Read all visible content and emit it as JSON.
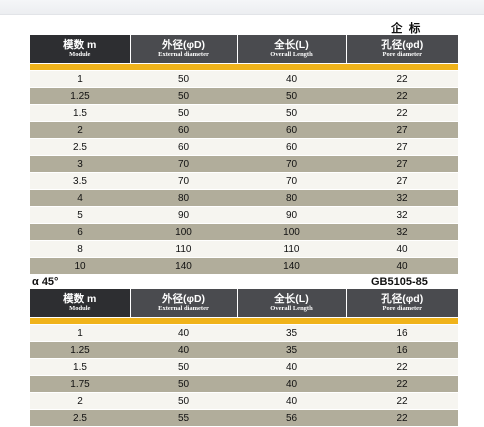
{
  "table1_label": "企  标",
  "section2_left_label": "α 45°",
  "section2_right_label": "GB5105-85",
  "headers": [
    {
      "cn": "模数 m",
      "en": "Module"
    },
    {
      "cn": "外径(φD)",
      "en": "External diameter"
    },
    {
      "cn": "全长(L)",
      "en": "Overall Length"
    },
    {
      "cn": "孔径(φd)",
      "en": "Pore diameter"
    }
  ],
  "table1_rows": [
    [
      "1",
      "50",
      "40",
      "22"
    ],
    [
      "1.25",
      "50",
      "50",
      "22"
    ],
    [
      "1.5",
      "50",
      "50",
      "22"
    ],
    [
      "2",
      "60",
      "60",
      "27"
    ],
    [
      "2.5",
      "60",
      "60",
      "27"
    ],
    [
      "3",
      "70",
      "70",
      "27"
    ],
    [
      "3.5",
      "70",
      "70",
      "27"
    ],
    [
      "4",
      "80",
      "80",
      "32"
    ],
    [
      "5",
      "90",
      "90",
      "32"
    ],
    [
      "6",
      "100",
      "100",
      "32"
    ],
    [
      "8",
      "110",
      "110",
      "40"
    ],
    [
      "10",
      "140",
      "140",
      "40"
    ]
  ],
  "table2_rows": [
    [
      "1",
      "40",
      "35",
      "16"
    ],
    [
      "1.25",
      "40",
      "35",
      "16"
    ],
    [
      "1.5",
      "50",
      "40",
      "22"
    ],
    [
      "1.75",
      "50",
      "40",
      "22"
    ],
    [
      "2",
      "50",
      "40",
      "22"
    ],
    [
      "2.5",
      "55",
      "56",
      "22"
    ]
  ]
}
